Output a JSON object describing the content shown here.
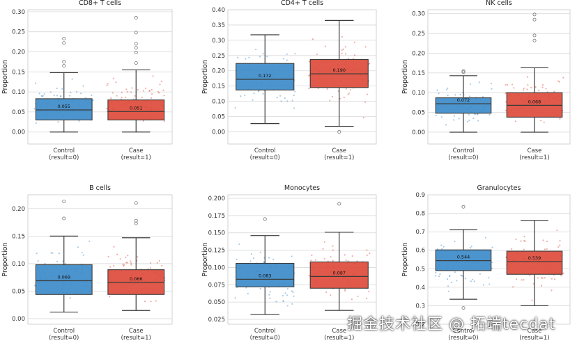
{
  "colors": {
    "control": "#3d8bc9",
    "case": "#dd4b3b",
    "grid": "#d9d9d9",
    "whisker": "#3a3a3a"
  },
  "watermark": "掘金技术社区 @ 拓端tecdat",
  "chart_data": [
    {
      "type": "box",
      "title": "CD8+ T cells",
      "ylabel": "Proportion",
      "ylim": [
        -0.03,
        0.305
      ],
      "yticks": [
        "0.00",
        "0.05",
        "0.10",
        "0.15",
        "0.20",
        "0.25",
        "0.30"
      ],
      "categories": [
        [
          "Control",
          "(result=0)"
        ],
        [
          "Case",
          "(result=1)"
        ]
      ],
      "series": [
        {
          "q1": 0.03,
          "median": 0.055,
          "q3": 0.083,
          "whislo": 0.0,
          "whishi": 0.148,
          "median_label": "0.055",
          "fliers": [
            0.165,
            0.175,
            0.222,
            0.233
          ]
        },
        {
          "q1": 0.03,
          "median": 0.051,
          "q3": 0.08,
          "whislo": 0.0,
          "whishi": 0.155,
          "median_label": "0.051",
          "fliers": [
            0.172,
            0.198,
            0.21,
            0.22,
            0.248,
            0.285
          ]
        }
      ]
    },
    {
      "type": "box",
      "title": "CD4+ T cells",
      "ylabel": "Proportion",
      "ylim": [
        -0.04,
        0.4
      ],
      "yticks": [
        "0.00",
        "0.05",
        "0.10",
        "0.15",
        "0.20",
        "0.25",
        "0.30",
        "0.35",
        "0.40"
      ],
      "categories": [
        [
          "Control",
          "(result=0)"
        ],
        [
          "Case",
          "(result=1)"
        ]
      ],
      "series": [
        {
          "q1": 0.137,
          "median": 0.172,
          "q3": 0.224,
          "whislo": 0.027,
          "whishi": 0.318,
          "median_label": "0.172",
          "fliers": []
        },
        {
          "q1": 0.145,
          "median": 0.19,
          "q3": 0.237,
          "whislo": 0.018,
          "whishi": 0.365,
          "median_label": "0.190",
          "fliers": [
            0.0
          ]
        }
      ]
    },
    {
      "type": "box",
      "title": "NK cells",
      "ylabel": "Proportion",
      "ylim": [
        -0.03,
        0.31
      ],
      "yticks": [
        "0.00",
        "0.05",
        "0.10",
        "0.15",
        "0.20",
        "0.25",
        "0.30"
      ],
      "categories": [
        [
          "Control",
          "(result=0)"
        ],
        [
          "Case",
          "(result=1)"
        ]
      ],
      "series": [
        {
          "q1": 0.048,
          "median": 0.072,
          "q3": 0.087,
          "whislo": 0.0,
          "whishi": 0.143,
          "median_label": "0.072",
          "fliers": [
            0.152,
            0.155
          ]
        },
        {
          "q1": 0.038,
          "median": 0.068,
          "q3": 0.1,
          "whislo": 0.0,
          "whishi": 0.163,
          "median_label": "0.068",
          "fliers": [
            0.232,
            0.245,
            0.285,
            0.298
          ]
        }
      ]
    },
    {
      "type": "box",
      "title": "B cells",
      "ylabel": "Proportion",
      "ylim": [
        -0.01,
        0.225
      ],
      "yticks": [
        "0.00",
        "0.05",
        "0.10",
        "0.15",
        "0.20"
      ],
      "categories": [
        [
          "Control",
          "(result=0)"
        ],
        [
          "Case",
          "(result=1)"
        ]
      ],
      "series": [
        {
          "q1": 0.044,
          "median": 0.069,
          "q3": 0.098,
          "whislo": 0.012,
          "whishi": 0.15,
          "median_label": "0.069",
          "fliers": [
            0.182,
            0.213
          ]
        },
        {
          "q1": 0.044,
          "median": 0.066,
          "q3": 0.089,
          "whislo": 0.015,
          "whishi": 0.147,
          "median_label": "0.066",
          "fliers": [
            0.173,
            0.178,
            0.21
          ]
        }
      ]
    },
    {
      "type": "box",
      "title": "Monocytes",
      "ylabel": "Proportion",
      "ylim": [
        0.018,
        0.205
      ],
      "yticks": [
        "0.025",
        "0.050",
        "0.075",
        "0.100",
        "0.125",
        "0.150",
        "0.175",
        "0.200"
      ],
      "categories": [
        [
          "Control",
          "(result=0)"
        ],
        [
          "Case",
          "(result=1)"
        ]
      ],
      "series": [
        {
          "q1": 0.072,
          "median": 0.083,
          "q3": 0.106,
          "whislo": 0.032,
          "whishi": 0.146,
          "median_label": "0.083",
          "fliers": [
            0.17
          ]
        },
        {
          "q1": 0.07,
          "median": 0.087,
          "q3": 0.108,
          "whislo": 0.038,
          "whishi": 0.151,
          "median_label": "0.087",
          "fliers": [
            0.192
          ]
        }
      ]
    },
    {
      "type": "box",
      "title": "Granulocytes",
      "ylabel": "Proportion",
      "ylim": [
        0.2,
        0.9
      ],
      "yticks": [
        "0.2",
        "0.3",
        "0.4",
        "0.5",
        "0.6",
        "0.7",
        "0.8",
        "0.9"
      ],
      "categories": [
        [
          "Control",
          "(result=0)"
        ],
        [
          "Case",
          "(result=1)"
        ]
      ],
      "series": [
        {
          "q1": 0.49,
          "median": 0.544,
          "q3": 0.602,
          "whislo": 0.335,
          "whishi": 0.712,
          "median_label": "0.544",
          "fliers": [
            0.288,
            0.835
          ]
        },
        {
          "q1": 0.47,
          "median": 0.539,
          "q3": 0.595,
          "whislo": 0.3,
          "whishi": 0.762,
          "median_label": "0.539",
          "fliers": []
        }
      ]
    }
  ]
}
